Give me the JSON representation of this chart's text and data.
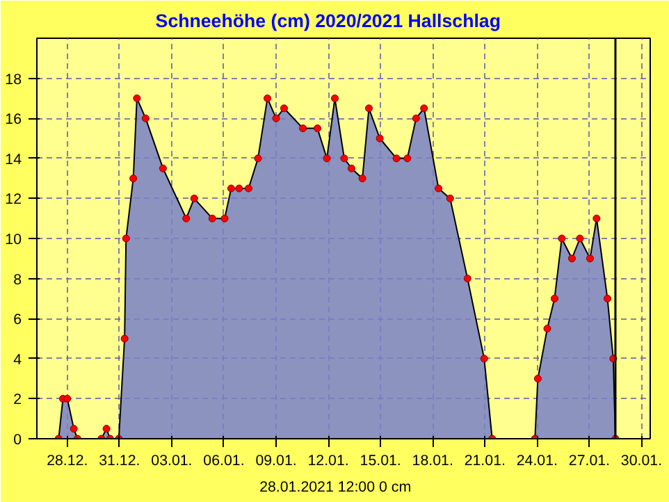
{
  "chart_data": {
    "type": "area",
    "title": "Schneehöhe (cm)  2020/2021      Hallschlag",
    "annotations": [
      "28.01.2021  12:00    0 cm"
    ],
    "x": [
      "2020-12-27T12:00",
      "2020-12-27T18:00",
      "2020-12-28T00:00",
      "2020-12-28T09:00",
      "2020-12-28T14:00",
      "2020-12-29T23:00",
      "2020-12-30T06:00",
      "2020-12-30T11:00",
      "2020-12-30T23:00",
      "2020-12-31T07:00",
      "2020-12-31T09:00",
      "2020-12-31T19:00",
      "2021-01-01T00:00",
      "2021-01-01T12:00",
      "2021-01-02T12:00",
      "2021-01-03T20:00",
      "2021-01-04T07:00",
      "2021-01-05T08:00",
      "2021-01-06T01:00",
      "2021-01-06T10:00",
      "2021-01-06T21:00",
      "2021-01-07T10:00",
      "2021-01-07T23:00",
      "2021-01-08T12:00",
      "2021-01-09T00:00",
      "2021-01-09T11:00",
      "2021-01-10T13:00",
      "2021-01-11T09:00",
      "2021-01-11T22:00",
      "2021-01-12T09:00",
      "2021-01-12T22:00",
      "2021-01-13T08:00",
      "2021-01-13T23:00",
      "2021-01-14T08:00",
      "2021-01-14T23:00",
      "2021-01-15T22:00",
      "2021-01-16T13:00",
      "2021-01-17T01:00",
      "2021-01-17T12:00",
      "2021-01-18T08:00",
      "2021-01-19T00:00",
      "2021-01-20T00:00",
      "2021-01-20T23:00",
      "2021-01-21T10:00",
      "2021-01-23T21:00",
      "2021-01-24T01:00",
      "2021-01-24T14:00",
      "2021-01-25T00:00",
      "2021-01-25T10:00",
      "2021-01-26T00:00",
      "2021-01-26T11:00",
      "2021-01-27T01:00",
      "2021-01-27T10:00",
      "2021-01-28T01:00",
      "2021-01-28T09:00",
      "2021-01-28T12:00"
    ],
    "series": [
      {
        "color": "#7880c8",
        "values": [
          0,
          2,
          2,
          0.5,
          0,
          0,
          0.5,
          0,
          0,
          5,
          10,
          13,
          17,
          16,
          13.5,
          11,
          12,
          11,
          11,
          12.5,
          12.5,
          12.5,
          14,
          17,
          16,
          16.5,
          15.5,
          15.5,
          14,
          17,
          14,
          13.5,
          13,
          16.5,
          15,
          14,
          14,
          16,
          16.5,
          12.5,
          12,
          8,
          4,
          0,
          0,
          3,
          5.5,
          7,
          10,
          9,
          10,
          9,
          11,
          7,
          4,
          0
        ]
      }
    ],
    "marker": "circle",
    "xlim": [
      "2020-12-26T06:00",
      "2021-01-30T12:00"
    ],
    "xticks": [
      {
        "value": "2020-12-28",
        "label": "28.12."
      },
      {
        "value": "2020-12-31",
        "label": "31.12."
      },
      {
        "value": "2021-01-03",
        "label": "03.01."
      },
      {
        "value": "2021-01-06",
        "label": "06.01."
      },
      {
        "value": "2021-01-09",
        "label": "09.01."
      },
      {
        "value": "2021-01-12",
        "label": "12.01."
      },
      {
        "value": "2021-01-15",
        "label": "15.01."
      },
      {
        "value": "2021-01-18",
        "label": "18.01."
      },
      {
        "value": "2021-01-21",
        "label": "21.01."
      },
      {
        "value": "2021-01-24",
        "label": "24.01."
      },
      {
        "value": "2021-01-27",
        "label": "27.01."
      },
      {
        "value": "2021-01-30",
        "label": "30.01."
      }
    ],
    "ylim": [
      0,
      20
    ],
    "yticks": [
      0,
      2,
      4,
      6,
      8,
      10,
      12,
      14,
      16,
      18
    ],
    "ref_lines": [
      {
        "axis": "x",
        "value": "2021-01-28T12:00",
        "label": null,
        "color": "#000000"
      }
    ],
    "grid": true
  }
}
